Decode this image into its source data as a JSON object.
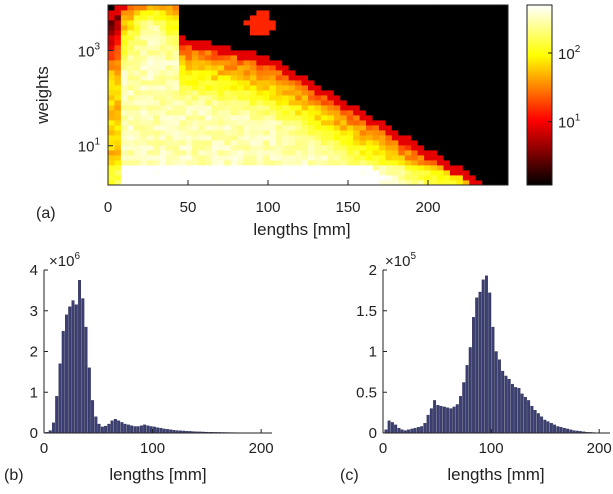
{
  "chart_data": [
    {
      "panel_label": "(a)",
      "type": "heatmap",
      "xlabel": "lengths [mm]",
      "ylabel": "weights",
      "xlim": [
        0,
        250
      ],
      "ylim": [
        1.5,
        9000
      ],
      "y_scale": "log",
      "x_ticks": [
        0,
        50,
        100,
        150,
        200
      ],
      "x_tick_labels": [
        "0",
        "50",
        "100",
        "150",
        "200"
      ],
      "y_ticks": [
        10,
        1000
      ],
      "y_tick_labels": [
        {
          "base": "10",
          "exp": "1"
        },
        {
          "base": "10",
          "exp": "3"
        }
      ],
      "colormap": "hot",
      "colors": [
        "#000000",
        "#ff0000",
        "#ffff00",
        "#ffffff"
      ],
      "colorbar": {
        "scale": "log",
        "range": [
          1.2,
          500
        ],
        "ticks": [
          10,
          100
        ],
        "tick_labels": [
          {
            "base": "10",
            "exp": "1"
          },
          {
            "base": "10",
            "exp": "2"
          }
        ]
      },
      "grid": false
    },
    {
      "panel_label": "(b)",
      "type": "bar",
      "xlabel": "lengths [mm]",
      "ylabel": "",
      "xlim": [
        0,
        210
      ],
      "ylim": [
        0,
        4
      ],
      "y_multiplier": {
        "base": "×10",
        "exp": "6"
      },
      "x_ticks": [
        0,
        100,
        200
      ],
      "x_tick_labels": [
        "0",
        "100",
        "200"
      ],
      "y_ticks": [
        0,
        1,
        2,
        3,
        4
      ],
      "y_tick_labels": [
        "0",
        "1",
        "2",
        "3",
        "4"
      ],
      "bin_width": 3,
      "bar_color": "#3b3f72",
      "x": [
        3,
        6,
        9,
        12,
        15,
        18,
        21,
        24,
        27,
        30,
        33,
        36,
        39,
        42,
        45,
        48,
        51,
        54,
        57,
        60,
        63,
        66,
        69,
        72,
        75,
        78,
        81,
        84,
        87,
        90,
        93,
        96,
        99,
        102,
        105,
        108,
        111,
        114,
        117,
        120,
        123,
        126,
        129,
        132,
        135,
        138,
        141,
        144,
        147,
        150,
        153,
        156,
        159,
        162,
        165,
        168,
        171,
        174,
        177,
        180,
        183,
        186,
        189,
        192,
        195,
        198,
        201,
        204,
        207
      ],
      "values": [
        0.02,
        0.06,
        0.25,
        0.9,
        1.7,
        2.5,
        2.9,
        3.1,
        3.25,
        3.15,
        3.75,
        3.3,
        2.6,
        1.6,
        0.8,
        0.4,
        0.22,
        0.15,
        0.17,
        0.22,
        0.3,
        0.34,
        0.3,
        0.26,
        0.22,
        0.2,
        0.18,
        0.16,
        0.16,
        0.18,
        0.2,
        0.18,
        0.16,
        0.15,
        0.13,
        0.12,
        0.1,
        0.09,
        0.08,
        0.07,
        0.06,
        0.055,
        0.05,
        0.045,
        0.04,
        0.035,
        0.03,
        0.028,
        0.025,
        0.022,
        0.02,
        0.018,
        0.016,
        0.015,
        0.014,
        0.013,
        0.012,
        0.011,
        0.01,
        0.009,
        0.008,
        0.007,
        0.006,
        0.005,
        0.004,
        0.003,
        0.002,
        0.002,
        0.001
      ],
      "grid": false
    },
    {
      "panel_label": "(c)",
      "type": "bar",
      "xlabel": "lengths [mm]",
      "ylabel": "",
      "xlim": [
        0,
        210
      ],
      "ylim": [
        0,
        2
      ],
      "y_multiplier": {
        "base": "×10",
        "exp": "5"
      },
      "x_ticks": [
        0,
        100,
        200
      ],
      "x_tick_labels": [
        "0",
        "100",
        "200"
      ],
      "y_ticks": [
        0,
        0.5,
        1,
        1.5,
        2
      ],
      "y_tick_labels": [
        "0",
        "0.5",
        "1",
        "1.5",
        "2"
      ],
      "bin_width": 3,
      "bar_color": "#3b3f72",
      "x": [
        3,
        6,
        9,
        12,
        15,
        18,
        21,
        24,
        27,
        30,
        33,
        36,
        39,
        42,
        45,
        48,
        51,
        54,
        57,
        60,
        63,
        66,
        69,
        72,
        75,
        78,
        81,
        84,
        87,
        90,
        93,
        96,
        99,
        102,
        105,
        108,
        111,
        114,
        117,
        120,
        123,
        126,
        129,
        132,
        135,
        138,
        141,
        144,
        147,
        150,
        153,
        156,
        159,
        162,
        165,
        168,
        171,
        174,
        177,
        180,
        183,
        186,
        189,
        192,
        195,
        198,
        201,
        204,
        207
      ],
      "values": [
        0.04,
        0.15,
        0.13,
        0.1,
        0.06,
        0.04,
        0.03,
        0.04,
        0.05,
        0.06,
        0.07,
        0.08,
        0.12,
        0.22,
        0.3,
        0.4,
        0.34,
        0.33,
        0.32,
        0.31,
        0.3,
        0.32,
        0.35,
        0.45,
        0.62,
        0.83,
        1.05,
        1.42,
        1.66,
        1.73,
        1.88,
        1.93,
        1.72,
        1.3,
        1.0,
        0.9,
        0.76,
        0.7,
        0.66,
        0.6,
        0.56,
        0.55,
        0.48,
        0.44,
        0.4,
        0.33,
        0.28,
        0.24,
        0.2,
        0.16,
        0.14,
        0.12,
        0.1,
        0.08,
        0.07,
        0.06,
        0.05,
        0.04,
        0.03,
        0.025,
        0.02,
        0.015,
        0.01,
        0.008,
        0.006,
        0.004,
        0.003,
        0.002,
        0.001
      ],
      "grid": false
    }
  ]
}
